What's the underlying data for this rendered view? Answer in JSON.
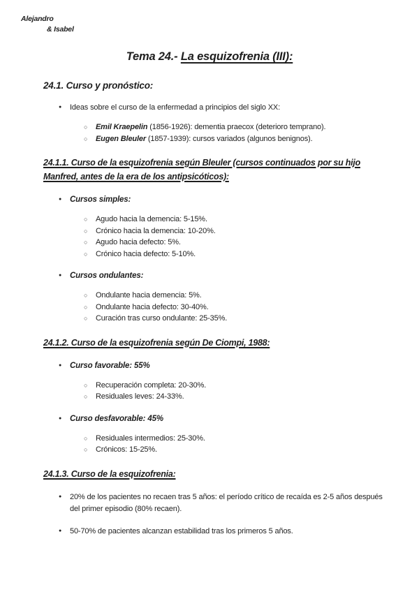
{
  "markers": {
    "disc": "●",
    "circle": "○"
  },
  "authors": {
    "line1": "Alejandro",
    "line2": "& Isabel"
  },
  "title": {
    "prefix": "Tema 24.- ",
    "main": "La esquizofrenia (III):"
  },
  "s1": {
    "heading": "24.1. Curso y pronóstico:",
    "intro": "Ideas sobre el curso de la enfermedad a principios del siglo XX:",
    "people": [
      {
        "name": "Emil Kraepelin",
        "rest": " (1856-1926): dementia praecox (deterioro temprano)."
      },
      {
        "name": "Eugen Bleuler",
        "rest": " (1857-1939): cursos variados (algunos benignos)."
      }
    ]
  },
  "s2": {
    "heading": "24.1.1. Curso de la esquizofrenia según Bleuler (cursos continuados por su hijo Manfred, antes de la era de los antipsicóticos):",
    "groups": [
      {
        "label": "Cursos simples:",
        "items": [
          "Agudo hacia la demencia: 5-15%.",
          "Crónico hacia la demencia: 10-20%.",
          "Agudo hacia defecto: 5%.",
          "Crónico hacia defecto: 5-10%."
        ]
      },
      {
        "label": "Cursos ondulantes:",
        "items": [
          "Ondulante hacia demencia: 5%.",
          "Ondulante hacia defecto: 30-40%.",
          "Curación tras curso ondulante: 25-35%."
        ]
      }
    ]
  },
  "s3": {
    "heading": "24.1.2. Curso de la esquizofrenia según De Ciompi, 1988:",
    "groups": [
      {
        "label": "Curso favorable: 55%",
        "items": [
          "Recuperación completa: 20-30%.",
          "Residuales leves: 24-33%."
        ]
      },
      {
        "label": "Curso desfavorable: 45%",
        "items": [
          "Residuales intermedios: 25-30%.",
          "Crónicos: 15-25%."
        ]
      }
    ]
  },
  "s4": {
    "heading": "24.1.3. Curso de la esquizofrenia:",
    "bullets": [
      "20% de los pacientes no recaen tras 5 años: el período crítico de recaída es 2-5 años después del primer episodio (80% recaen).",
      "50-70% de pacientes alcanzan estabilidad tras los primeros 5 años."
    ]
  }
}
